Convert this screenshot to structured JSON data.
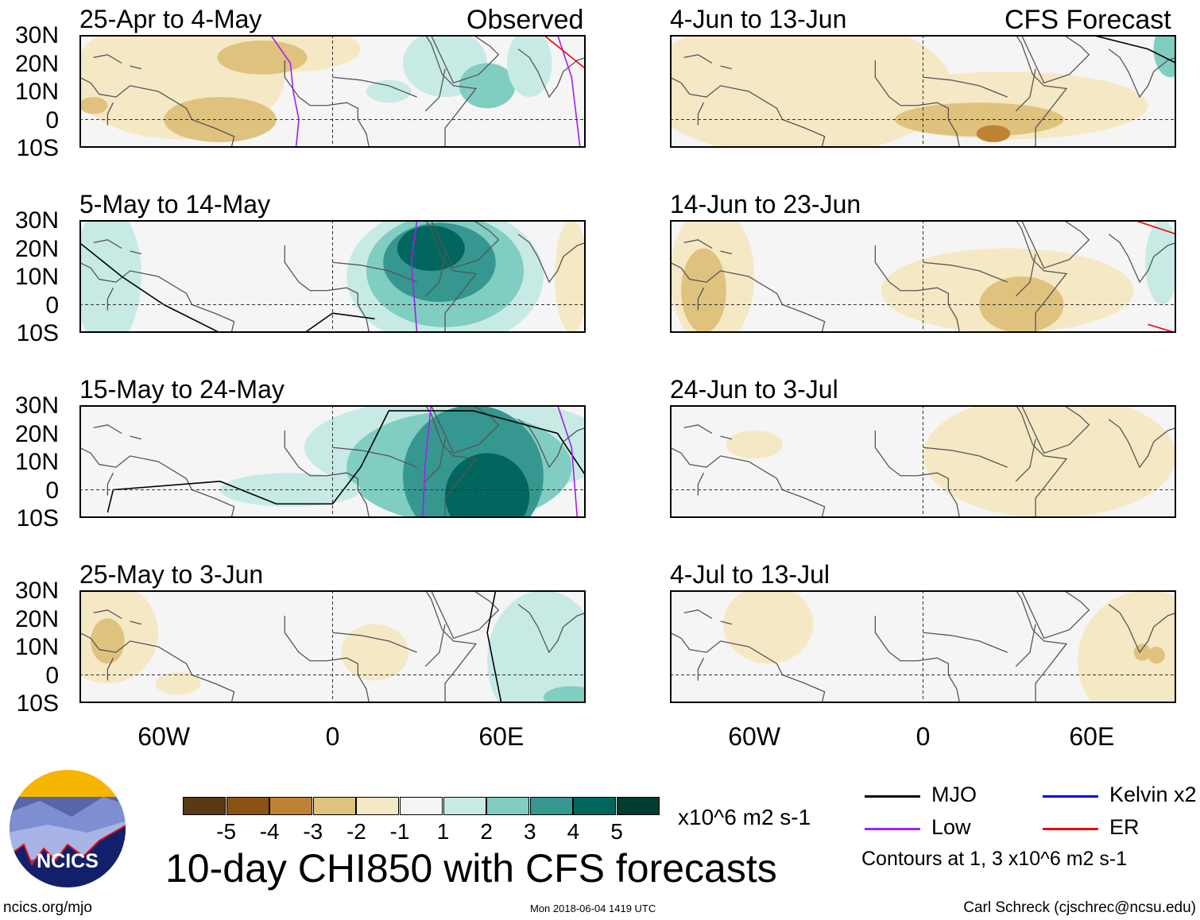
{
  "chart_data": {
    "type": "heatmap",
    "title": "10-day CHI850 with CFS forecasts",
    "observed_label": "Observed",
    "forecast_label": "CFS Forecast",
    "panels": [
      {
        "title": "25-Apr to 4-May",
        "column": "Observed"
      },
      {
        "title": "5-May to 14-May",
        "column": "Observed"
      },
      {
        "title": "15-May to 24-May",
        "column": "Observed"
      },
      {
        "title": "25-May to 3-Jun",
        "column": "Observed"
      },
      {
        "title": "4-Jun to 13-Jun",
        "column": "CFS Forecast"
      },
      {
        "title": "14-Jun to 23-Jun",
        "column": "CFS Forecast"
      },
      {
        "title": "24-Jun to 3-Jul",
        "column": "CFS Forecast"
      },
      {
        "title": "4-Jul to 13-Jul",
        "column": "CFS Forecast"
      }
    ],
    "lat_ticks": [
      "30N",
      "20N",
      "10N",
      "0",
      "10S"
    ],
    "lon_ticks": [
      "60W",
      "0",
      "60E"
    ],
    "lon_range": [
      -90,
      90
    ],
    "lat_range": [
      -10,
      30
    ],
    "colorbar": {
      "labels": [
        "-5",
        "-4",
        "-3",
        "-2",
        "-1",
        "1",
        "2",
        "3",
        "4",
        "5"
      ],
      "colors": [
        "#5a3a12",
        "#8c5214",
        "#be8232",
        "#dfc27d",
        "#f5e8c4",
        "#f5f5f5",
        "#c7eae5",
        "#80cdc1",
        "#35978f",
        "#01665e",
        "#003c30"
      ],
      "units": "x10^6 m2 s-1"
    },
    "legend": [
      {
        "label": "MJO",
        "color": "#000000"
      },
      {
        "label": "Kelvin x2",
        "color": "#0000ee"
      },
      {
        "label": "Low",
        "color": "#a020f0"
      },
      {
        "label": "ER",
        "color": "#ee0000"
      }
    ],
    "contour_note": "Contours at 1, 3 x10^6 m2 s-1"
  },
  "footer": {
    "logo_text": "NCICS",
    "site": "ncics.org/mjo",
    "timestamp": "Mon 2018-06-04 1419 UTC",
    "author": "Carl Schreck (cjschrec@ncsu.edu)"
  }
}
